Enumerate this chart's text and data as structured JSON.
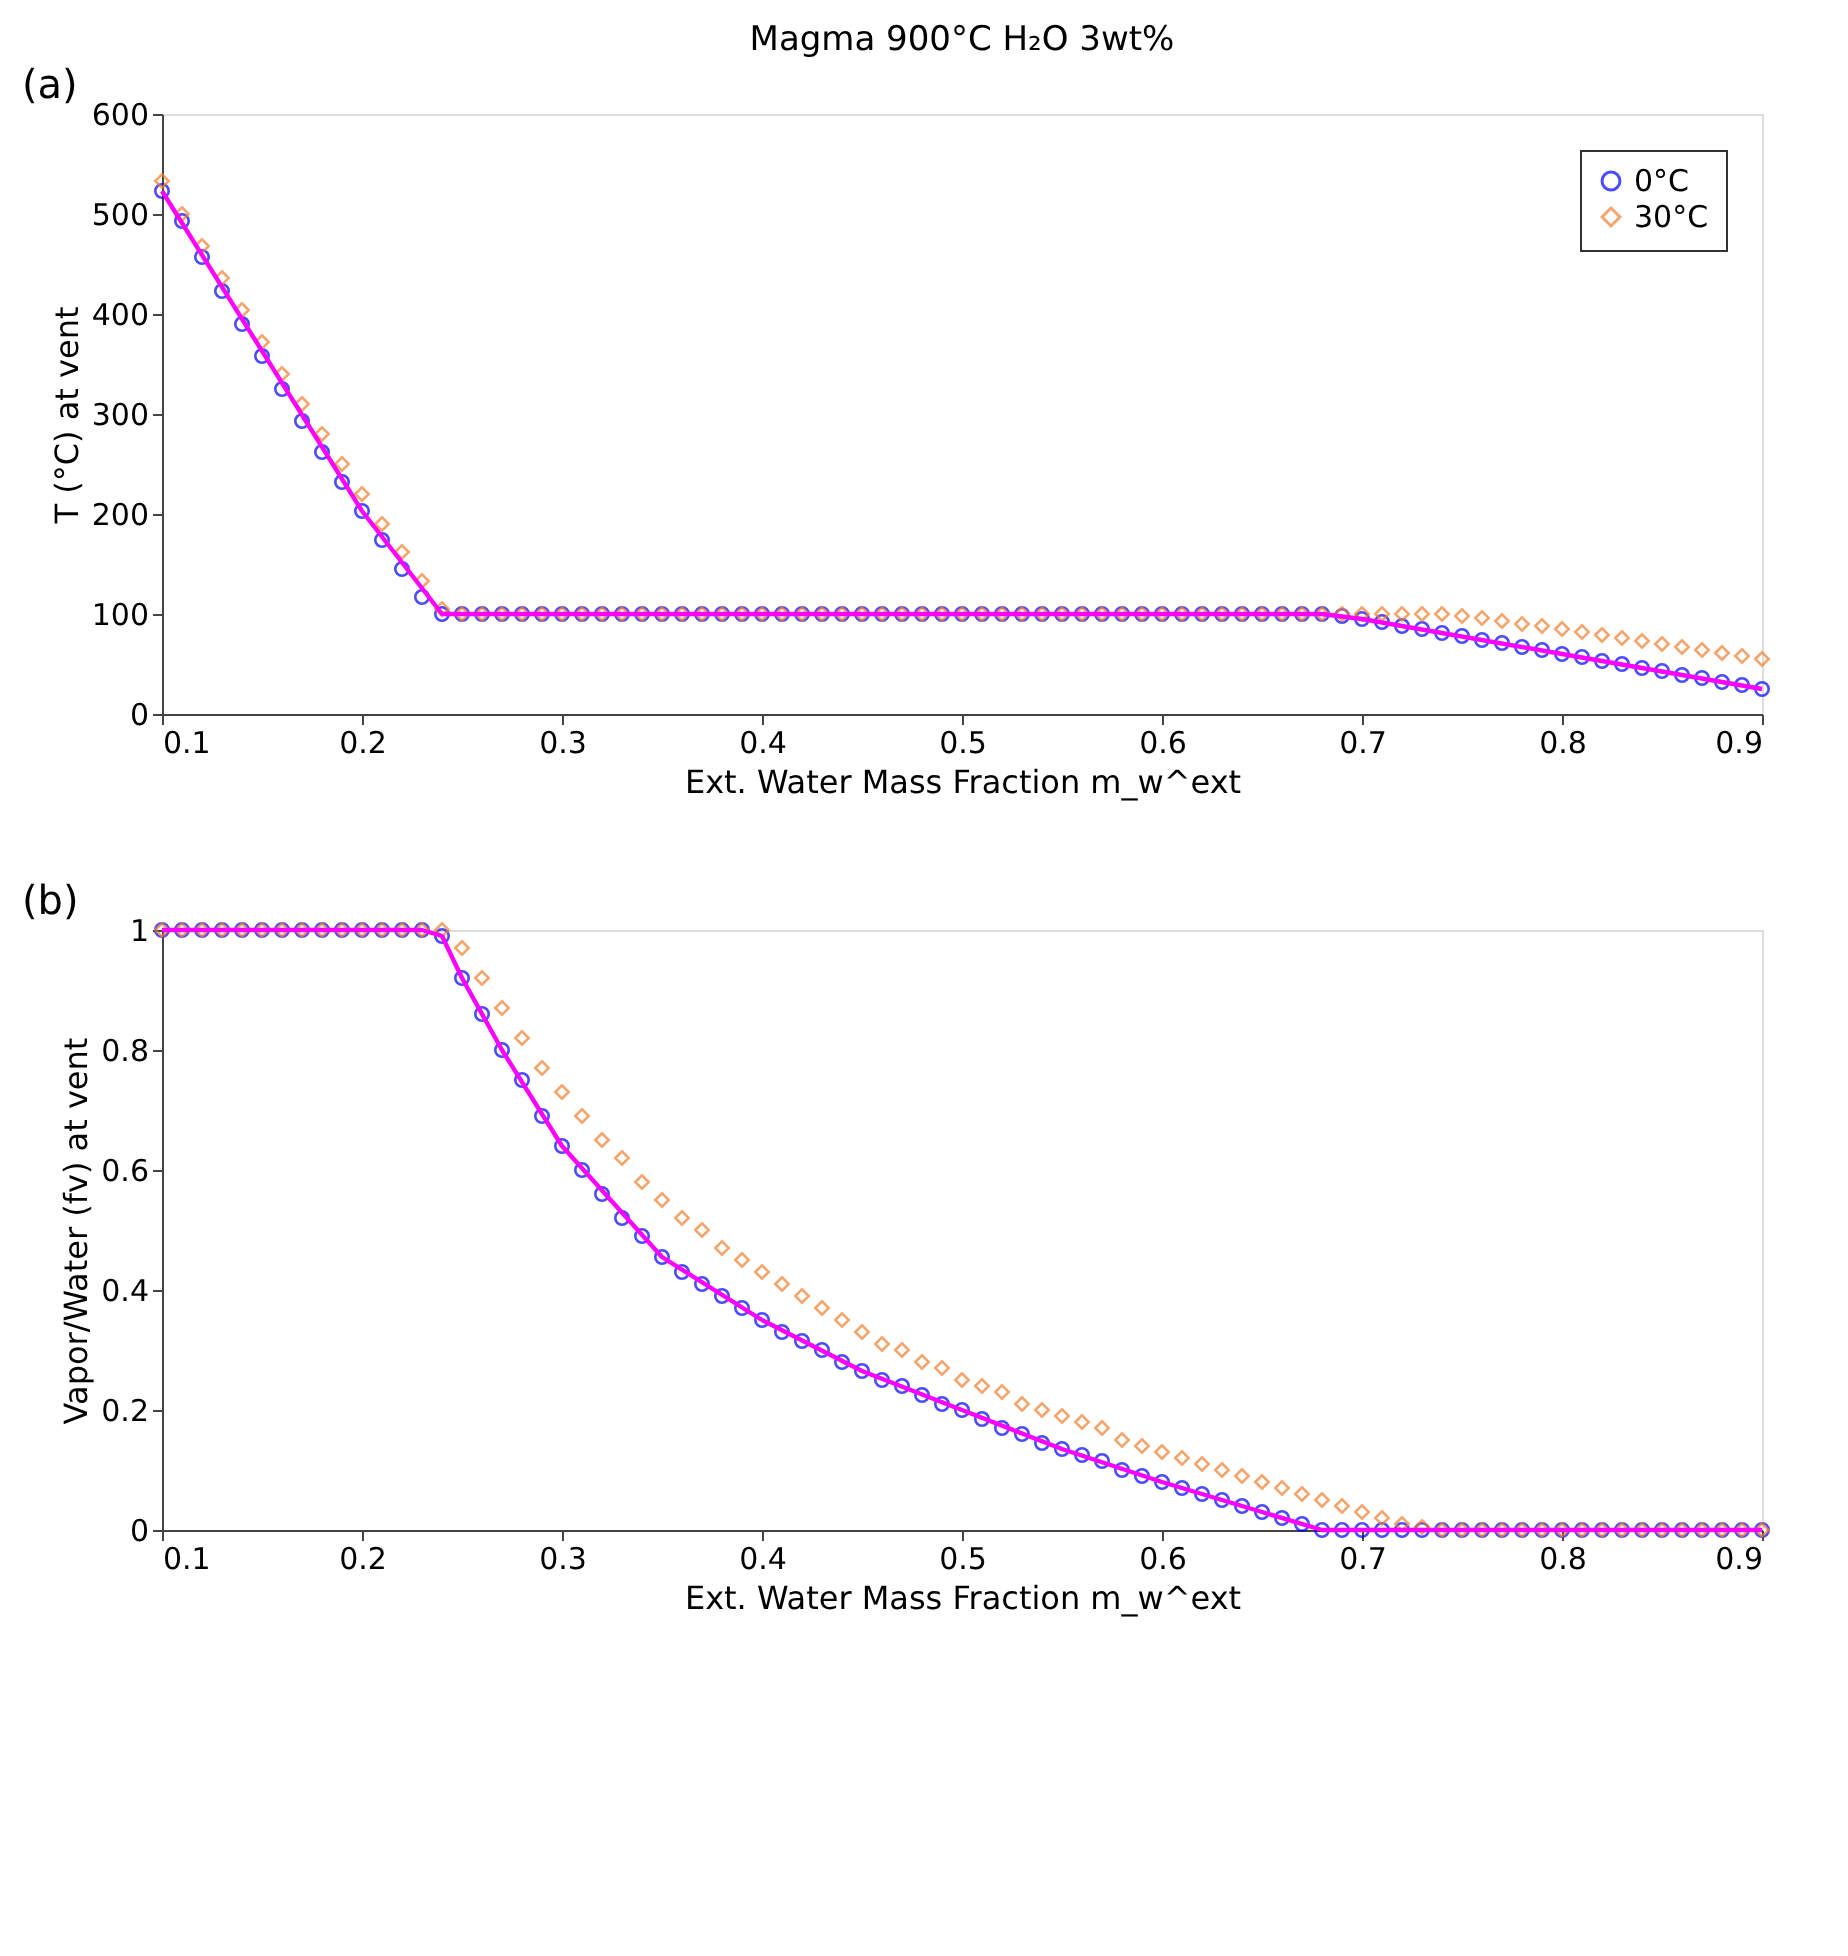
{
  "chart_data": [
    {
      "type": "scatter",
      "title": "Magma 900°C H₂O 3wt%",
      "xlabel": "Ext. Water Mass Fraction m_w^ext",
      "ylabel": "T (°C) at vent",
      "annotations": [
        "(a)"
      ],
      "x": [
        0.1,
        0.11,
        0.12,
        0.13,
        0.14,
        0.15,
        0.16,
        0.17,
        0.18,
        0.19,
        0.2,
        0.21,
        0.22,
        0.23,
        0.24,
        0.25,
        0.26,
        0.27,
        0.28,
        0.29,
        0.3,
        0.31,
        0.32,
        0.33,
        0.34,
        0.35,
        0.36,
        0.37,
        0.38,
        0.39,
        0.4,
        0.41,
        0.42,
        0.43,
        0.44,
        0.45,
        0.46,
        0.47,
        0.48,
        0.49,
        0.5,
        0.51,
        0.52,
        0.53,
        0.54,
        0.55,
        0.56,
        0.57,
        0.58,
        0.59,
        0.6,
        0.61,
        0.62,
        0.63,
        0.64,
        0.65,
        0.66,
        0.67,
        0.68,
        0.69,
        0.7,
        0.71,
        0.72,
        0.73,
        0.74,
        0.75,
        0.76,
        0.77,
        0.78,
        0.79,
        0.8,
        0.81,
        0.82,
        0.83,
        0.84,
        0.85,
        0.86,
        0.87,
        0.88,
        0.89,
        0.9
      ],
      "series": [
        {
          "name": "0°C",
          "color": "#0000ff",
          "marker": "circle",
          "values": [
            523,
            493,
            457,
            423,
            390,
            358,
            325,
            293,
            262,
            232,
            203,
            174,
            145,
            117,
            100,
            100,
            100,
            100,
            100,
            100,
            100,
            100,
            100,
            100,
            100,
            100,
            100,
            100,
            100,
            100,
            100,
            100,
            100,
            100,
            100,
            100,
            100,
            100,
            100,
            100,
            100,
            100,
            100,
            100,
            100,
            100,
            100,
            100,
            100,
            100,
            100,
            100,
            100,
            100,
            100,
            100,
            100,
            100,
            100,
            98,
            95,
            92,
            88,
            85,
            81,
            78,
            74,
            71,
            67,
            64,
            60,
            57,
            53,
            50,
            46,
            43,
            39,
            36,
            32,
            29,
            25
          ]
        },
        {
          "name": "30°C",
          "color": "#f07f30",
          "marker": "diamond",
          "values": [
            533,
            500,
            468,
            436,
            404,
            372,
            340,
            310,
            280,
            250,
            220,
            190,
            162,
            133,
            105,
            100,
            100,
            100,
            100,
            100,
            100,
            100,
            100,
            100,
            100,
            100,
            100,
            100,
            100,
            100,
            100,
            100,
            100,
            100,
            100,
            100,
            100,
            100,
            100,
            100,
            100,
            100,
            100,
            100,
            100,
            100,
            100,
            100,
            100,
            100,
            100,
            100,
            100,
            100,
            100,
            100,
            100,
            100,
            100,
            100,
            100,
            100,
            100,
            100,
            100,
            98,
            96,
            93,
            90,
            88,
            85,
            82,
            79,
            76,
            73,
            70,
            67,
            64,
            61,
            58,
            55
          ]
        },
        {
          "type": "line",
          "color": "#ff00ff",
          "line_style": "solid",
          "marker": "none",
          "x": [
            0.1,
            0.2,
            0.24,
            0.68,
            0.7,
            0.8,
            0.9
          ],
          "values": [
            523,
            203,
            100,
            100,
            95,
            60,
            25
          ]
        }
      ],
      "xlim": [
        0.1,
        0.9
      ],
      "xticks": [
        0.1,
        0.2,
        0.3,
        0.4,
        0.5,
        0.6,
        0.7,
        0.8,
        0.9
      ],
      "ylim": [
        0,
        600
      ],
      "yticks": [
        0,
        100,
        200,
        300,
        400,
        500,
        600
      ],
      "legend": "top right"
    },
    {
      "type": "scatter",
      "xlabel": "Ext. Water Mass Fraction m_w^ext",
      "ylabel": "Vapor/Water (fv) at vent",
      "annotations": [
        "(b)"
      ],
      "x": [
        0.1,
        0.11,
        0.12,
        0.13,
        0.14,
        0.15,
        0.16,
        0.17,
        0.18,
        0.19,
        0.2,
        0.21,
        0.22,
        0.23,
        0.24,
        0.25,
        0.26,
        0.27,
        0.28,
        0.29,
        0.3,
        0.31,
        0.32,
        0.33,
        0.34,
        0.35,
        0.36,
        0.37,
        0.38,
        0.39,
        0.4,
        0.41,
        0.42,
        0.43,
        0.44,
        0.45,
        0.46,
        0.47,
        0.48,
        0.49,
        0.5,
        0.51,
        0.52,
        0.53,
        0.54,
        0.55,
        0.56,
        0.57,
        0.58,
        0.59,
        0.6,
        0.61,
        0.62,
        0.63,
        0.64,
        0.65,
        0.66,
        0.67,
        0.68,
        0.69,
        0.7,
        0.71,
        0.72,
        0.73,
        0.74,
        0.75,
        0.76,
        0.77,
        0.78,
        0.79,
        0.8,
        0.81,
        0.82,
        0.83,
        0.84,
        0.85,
        0.86,
        0.87,
        0.88,
        0.89,
        0.9
      ],
      "series": [
        {
          "color": "#0000ff",
          "marker": "circle",
          "values": [
            1,
            1,
            1,
            1,
            1,
            1,
            1,
            1,
            1,
            1,
            1,
            1,
            1,
            1,
            0.99,
            0.92,
            0.86,
            0.8,
            0.75,
            0.69,
            0.64,
            0.6,
            0.56,
            0.52,
            0.49,
            0.455,
            0.43,
            0.41,
            0.39,
            0.37,
            0.35,
            0.33,
            0.315,
            0.3,
            0.28,
            0.265,
            0.25,
            0.24,
            0.225,
            0.21,
            0.2,
            0.185,
            0.17,
            0.16,
            0.145,
            0.135,
            0.125,
            0.115,
            0.1,
            0.09,
            0.08,
            0.07,
            0.06,
            0.05,
            0.04,
            0.03,
            0.02,
            0.01,
            0,
            0,
            0,
            0,
            0,
            0,
            0,
            0,
            0,
            0,
            0,
            0,
            0,
            0,
            0,
            0,
            0,
            0,
            0,
            0,
            0,
            0,
            0
          ]
        },
        {
          "color": "#f07f30",
          "marker": "diamond",
          "values": [
            1,
            1,
            1,
            1,
            1,
            1,
            1,
            1,
            1,
            1,
            1,
            1,
            1,
            1,
            1,
            0.97,
            0.92,
            0.87,
            0.82,
            0.77,
            0.73,
            0.69,
            0.65,
            0.62,
            0.58,
            0.55,
            0.52,
            0.5,
            0.47,
            0.45,
            0.43,
            0.41,
            0.39,
            0.37,
            0.35,
            0.33,
            0.31,
            0.3,
            0.28,
            0.27,
            0.25,
            0.24,
            0.23,
            0.21,
            0.2,
            0.19,
            0.18,
            0.17,
            0.15,
            0.14,
            0.13,
            0.12,
            0.11,
            0.1,
            0.09,
            0.08,
            0.07,
            0.06,
            0.05,
            0.04,
            0.03,
            0.02,
            0.01,
            0.005,
            0,
            0,
            0,
            0,
            0,
            0,
            0,
            0,
            0,
            0,
            0,
            0,
            0,
            0,
            0,
            0,
            0
          ]
        },
        {
          "type": "line",
          "color": "#ff00ff",
          "line_style": "solid",
          "marker": "none",
          "x": [
            0.1,
            0.23,
            0.24,
            0.25,
            0.27,
            0.3,
            0.35,
            0.4,
            0.45,
            0.5,
            0.55,
            0.6,
            0.65,
            0.68,
            0.9
          ],
          "values": [
            1,
            1,
            0.99,
            0.92,
            0.8,
            0.64,
            0.455,
            0.35,
            0.265,
            0.2,
            0.135,
            0.08,
            0.03,
            0,
            0
          ]
        }
      ],
      "xlim": [
        0.1,
        0.9
      ],
      "xticks": [
        0.1,
        0.2,
        0.3,
        0.4,
        0.5,
        0.6,
        0.7,
        0.8,
        0.9
      ],
      "ylim": [
        0,
        1
      ],
      "yticks": [
        0,
        0.2,
        0.4,
        0.6,
        0.8,
        1
      ],
      "legend": false
    }
  ]
}
